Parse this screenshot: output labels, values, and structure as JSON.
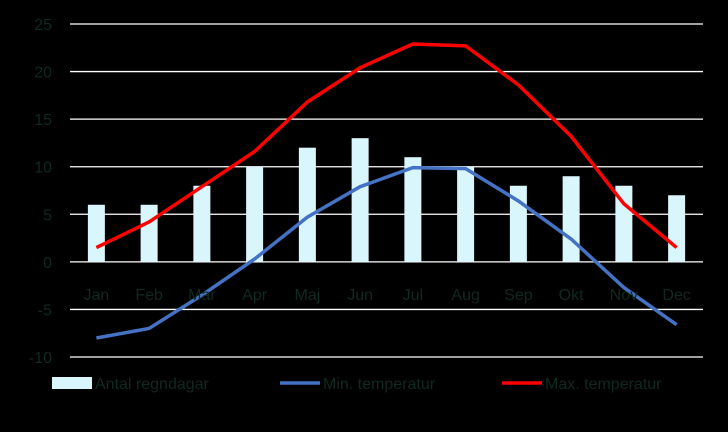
{
  "chart_data": {
    "type": "bar+line",
    "categories": [
      "Jan",
      "Feb",
      "Mar",
      "Apr",
      "Maj",
      "Jun",
      "Jul",
      "Aug",
      "Sep",
      "Okt",
      "Nov",
      "Dec"
    ],
    "ylim": [
      -10,
      25
    ],
    "yticks": [
      -10,
      -5,
      0,
      5,
      10,
      15,
      20,
      25
    ],
    "grid": true,
    "legend_position": "bottom",
    "series": [
      {
        "name": "Antal regndagar",
        "kind": "bar",
        "color": "#D9F6FC",
        "values": [
          6,
          6,
          8,
          10,
          12,
          13,
          11,
          10,
          8,
          9,
          8,
          7
        ]
      },
      {
        "name": "Min. temperatur",
        "kind": "line",
        "color": "#4472C4",
        "values": [
          -8,
          -7,
          -3.5,
          0.3,
          4.7,
          7.9,
          9.9,
          9.8,
          6.4,
          2.4,
          -2.7,
          -6.6
        ]
      },
      {
        "name": "Max. temperatur",
        "kind": "line",
        "color": "#FF0000",
        "values": [
          1.5,
          4.2,
          7.9,
          11.6,
          16.8,
          20.4,
          22.9,
          22.7,
          18.6,
          13.2,
          6.1,
          1.5
        ]
      }
    ],
    "colors": {
      "background": "#000000",
      "grid": "#FFFFFF",
      "tick_label": "#0F2A1F"
    }
  }
}
